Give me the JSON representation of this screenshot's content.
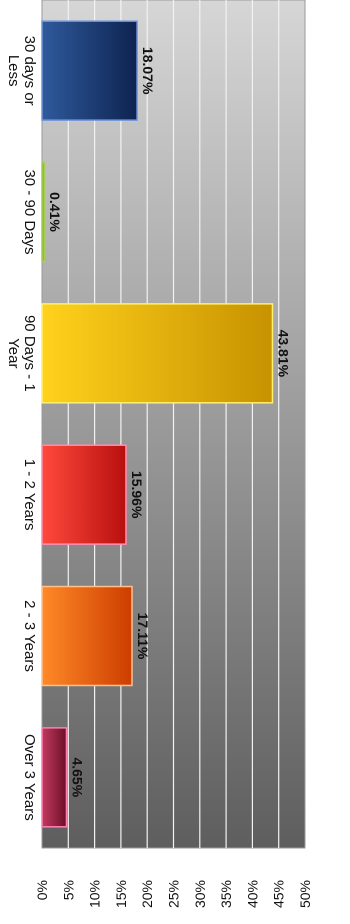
{
  "chart_data": {
    "type": "bar",
    "orientation": "rotated 90 degrees clockwise (value axis along the bottom edge)",
    "categories": [
      "30 days or Less",
      "30 - 90 Days",
      "90 Days - 1 Year",
      "1 - 2 Years",
      "2 - 3 Years",
      "Over 3 Years"
    ],
    "category_label_lines": [
      [
        "30 days or",
        "Less"
      ],
      [
        "30 - 90 Days"
      ],
      [
        "90 Days - 1",
        "Year"
      ],
      [
        "1 - 2 Years"
      ],
      [
        "2 - 3 Years"
      ],
      [
        "Over 3 Years"
      ]
    ],
    "values": [
      18.07,
      0.41,
      43.81,
      15.96,
      17.11,
      4.65
    ],
    "data_labels": [
      "18.07%",
      "0.41%",
      "43.81%",
      "15.96%",
      "17.11%",
      "4.65%"
    ],
    "tick_labels": [
      "0%",
      "5%",
      "10%",
      "15%",
      "20%",
      "25%",
      "30%",
      "35%",
      "40%",
      "45%",
      "50%"
    ],
    "ylim": [
      0,
      50
    ],
    "grid": true,
    "title": "",
    "xlabel": "",
    "ylabel": "",
    "colors": {
      "bars": [
        {
          "light": "#2f5a9c",
          "dark": "#0e2350",
          "edge": "#6f95d8"
        },
        {
          "light": "#8fbf2a",
          "dark": "#5f8e10",
          "edge": "#a5d04a"
        },
        {
          "light": "#ffd21c",
          "dark": "#c79200",
          "edge": "#fff070"
        },
        {
          "light": "#ff4a3c",
          "dark": "#b80f0f",
          "edge": "#ff8cae"
        },
        {
          "light": "#ff8a28",
          "dark": "#cc3d00",
          "edge": "#ffc08a"
        },
        {
          "light": "#c23a5e",
          "dark": "#6c0f29",
          "edge": "#ff7fb4"
        }
      ],
      "plot_background_light": "#d6d6d6",
      "plot_background_dark": "#5e5e5e",
      "gridline": "#f2f2f2"
    }
  }
}
